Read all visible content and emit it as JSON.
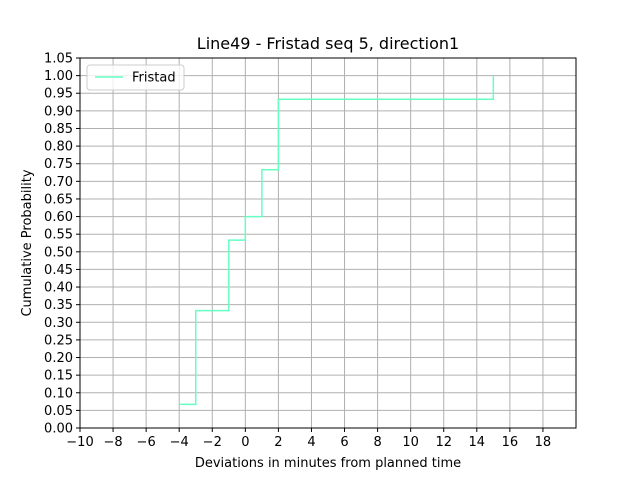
{
  "chart_data": {
    "type": "line",
    "drawstyle": "steps-post",
    "title": "Line49 - Fristad seq 5, direction1",
    "xlabel": "Deviations in minutes from planned time",
    "ylabel": "Cumulative Probability",
    "xlim": [
      -10,
      20
    ],
    "ylim": [
      0,
      1.05
    ],
    "xticks": [
      -10,
      -8,
      -6,
      -4,
      -2,
      0,
      2,
      4,
      6,
      8,
      10,
      12,
      14,
      16,
      18
    ],
    "xtick_labels": [
      "−10",
      "−8",
      "−6",
      "−4",
      "−2",
      "0",
      "2",
      "4",
      "6",
      "8",
      "10",
      "12",
      "14",
      "16",
      "18"
    ],
    "yticks": [
      0,
      0.05,
      0.1,
      0.15,
      0.2,
      0.25,
      0.3,
      0.35,
      0.4,
      0.45,
      0.5,
      0.55,
      0.6,
      0.65,
      0.7,
      0.75,
      0.8,
      0.85,
      0.9,
      0.95,
      1.0,
      1.05
    ],
    "ytick_labels": [
      "0.00",
      "0.05",
      "0.10",
      "0.15",
      "0.20",
      "0.25",
      "0.30",
      "0.35",
      "0.40",
      "0.45",
      "0.50",
      "0.55",
      "0.60",
      "0.65",
      "0.70",
      "0.75",
      "0.80",
      "0.85",
      "0.90",
      "0.95",
      "1.00",
      "1.05"
    ],
    "grid": true,
    "legend": "top-left",
    "series": [
      {
        "name": "Fristad",
        "color": "#66ffc2",
        "x": [
          -4,
          -3,
          -1,
          0,
          1,
          2,
          15
        ],
        "y": [
          0.067,
          0.333,
          0.533,
          0.6,
          0.733,
          0.933,
          1.0
        ]
      }
    ]
  }
}
